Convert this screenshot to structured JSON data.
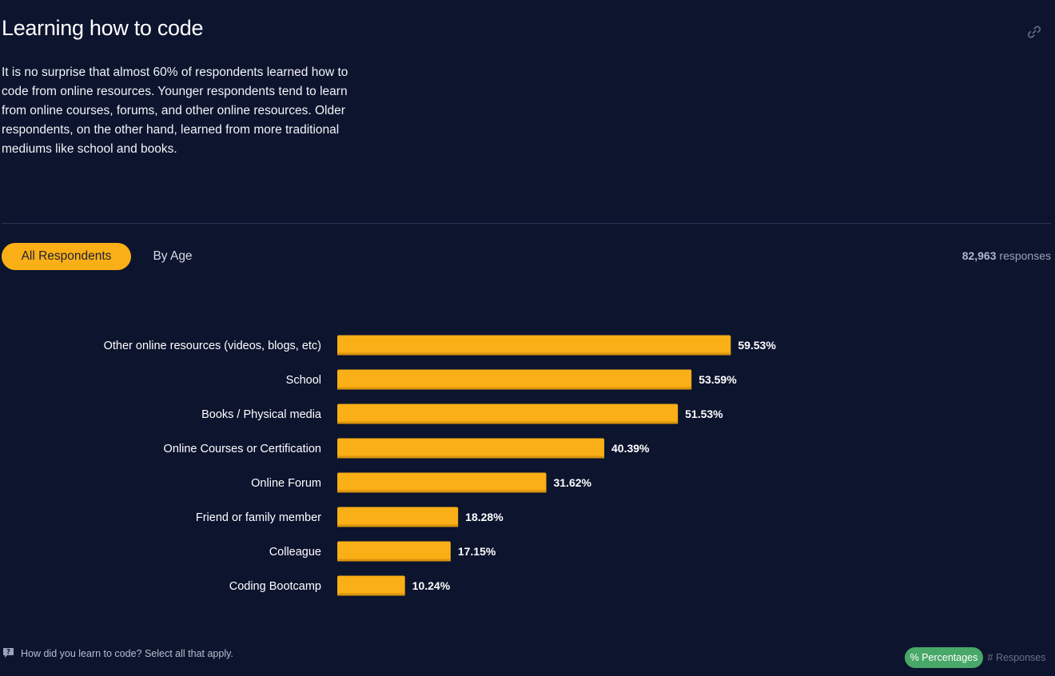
{
  "header": {
    "title": "Learning how to code",
    "link_icon": "link-icon"
  },
  "description": "It is no surprise that almost 60% of respondents learned how to code from online resources. Younger respondents tend to learn from online courses, forums, and other online resources. Older respondents, on the other hand, learned from more traditional mediums like school and books.",
  "tabs": {
    "active_label": "All Respondents",
    "inactive_label": "By Age"
  },
  "responses": {
    "count": "82,963",
    "label": "responses"
  },
  "chart_data": {
    "type": "bar",
    "orientation": "horizontal",
    "categories": [
      "Other online resources (videos, blogs, etc)",
      "School",
      "Books / Physical media",
      "Online Courses or Certification",
      "Online Forum",
      "Friend or family member",
      "Colleague",
      "Coding Bootcamp"
    ],
    "values": [
      59.53,
      53.59,
      51.53,
      40.39,
      31.62,
      18.28,
      17.15,
      10.24
    ],
    "value_labels": [
      "59.53%",
      "53.59%",
      "51.53%",
      "40.39%",
      "31.62%",
      "18.28%",
      "17.15%",
      "10.24%"
    ],
    "unit": "%",
    "bar_color": "#fbaf16",
    "title": "",
    "xlabel": "",
    "ylabel": "",
    "xlim": [
      0,
      100
    ],
    "grid": false
  },
  "footer": {
    "question_icon": "question-icon",
    "question": "How did you learn to code? Select all that apply.",
    "toggle_active": "% Percentages",
    "toggle_inactive": "# Responses"
  },
  "colors": {
    "background": "#0c142e",
    "accent": "#fbaf16",
    "toggle_active": "#48a868",
    "divider": "#2c3550"
  }
}
